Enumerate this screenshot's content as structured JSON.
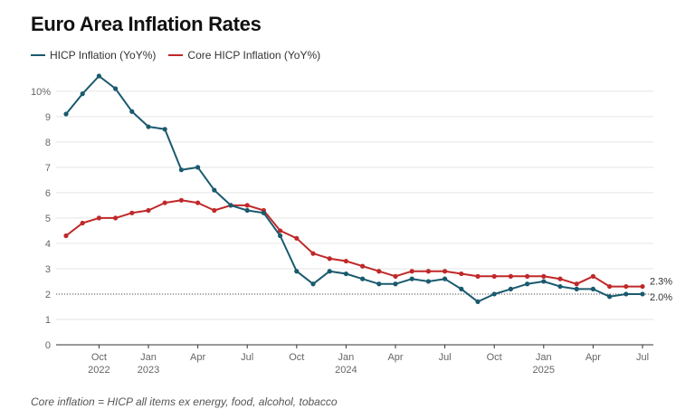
{
  "title": "Euro Area Inflation Rates",
  "footnote": "Core inflation = HICP all items ex energy, food, alcohol, tobacco",
  "colors": {
    "hicp": "#1a5a6e",
    "core": "#c0282a",
    "grid": "#e5e5e5",
    "axis": "#333333"
  },
  "chart_data": {
    "type": "line",
    "title": "Euro Area Inflation Rates",
    "xlabel": "",
    "ylabel": "",
    "ylim": [
      0,
      10.6
    ],
    "yticks": [
      {
        "v": 0,
        "label": "0"
      },
      {
        "v": 1,
        "label": "1"
      },
      {
        "v": 2,
        "label": "2"
      },
      {
        "v": 3,
        "label": "3"
      },
      {
        "v": 4,
        "label": "4"
      },
      {
        "v": 5,
        "label": "5"
      },
      {
        "v": 6,
        "label": "6"
      },
      {
        "v": 7,
        "label": "7"
      },
      {
        "v": 8,
        "label": "8"
      },
      {
        "v": 9,
        "label": "9"
      },
      {
        "v": 10,
        "label": "10%"
      }
    ],
    "reference_line": 2,
    "grid": true,
    "legend": "top-left",
    "x": [
      "2022-08",
      "2022-09",
      "2022-10",
      "2022-11",
      "2022-12",
      "2023-01",
      "2023-02",
      "2023-03",
      "2023-04",
      "2023-05",
      "2023-06",
      "2023-07",
      "2023-08",
      "2023-09",
      "2023-10",
      "2023-11",
      "2023-12",
      "2024-01",
      "2024-02",
      "2024-03",
      "2024-04",
      "2024-05",
      "2024-06",
      "2024-07",
      "2024-08",
      "2024-09",
      "2024-10",
      "2024-11",
      "2024-12",
      "2025-01",
      "2025-02",
      "2025-03",
      "2025-04",
      "2025-05",
      "2025-06",
      "2025-07"
    ],
    "xticks": [
      {
        "month": "2022-10",
        "label": "Oct",
        "year": "2022"
      },
      {
        "month": "2023-01",
        "label": "Jan",
        "year": "2023"
      },
      {
        "month": "2023-04",
        "label": "Apr",
        "year": ""
      },
      {
        "month": "2023-07",
        "label": "Jul",
        "year": ""
      },
      {
        "month": "2023-10",
        "label": "Oct",
        "year": ""
      },
      {
        "month": "2024-01",
        "label": "Jan",
        "year": "2024"
      },
      {
        "month": "2024-04",
        "label": "Apr",
        "year": ""
      },
      {
        "month": "2024-07",
        "label": "Jul",
        "year": ""
      },
      {
        "month": "2024-10",
        "label": "Oct",
        "year": ""
      },
      {
        "month": "2025-01",
        "label": "Jan",
        "year": "2025"
      },
      {
        "month": "2025-04",
        "label": "Apr",
        "year": ""
      },
      {
        "month": "2025-07",
        "label": "Jul",
        "year": ""
      }
    ],
    "series": [
      {
        "name": "HICP Inflation (YoY%)",
        "color": "#1a5a6e",
        "end_label": "2.0%",
        "values": [
          9.1,
          9.9,
          10.6,
          10.1,
          9.2,
          8.6,
          8.5,
          6.9,
          7.0,
          6.1,
          5.5,
          5.3,
          5.2,
          4.3,
          2.9,
          2.4,
          2.9,
          2.8,
          2.6,
          2.4,
          2.4,
          2.6,
          2.5,
          2.6,
          2.2,
          1.7,
          2.0,
          2.2,
          2.4,
          2.5,
          2.3,
          2.2,
          2.2,
          1.9,
          2.0,
          2.0
        ]
      },
      {
        "name": "Core HICP Inflation (YoY%)",
        "color": "#c0282a",
        "end_label": "2.3%",
        "values": [
          4.3,
          4.8,
          5.0,
          5.0,
          5.2,
          5.3,
          5.6,
          5.7,
          5.6,
          5.3,
          5.5,
          5.5,
          5.3,
          4.5,
          4.2,
          3.6,
          3.4,
          3.3,
          3.1,
          2.9,
          2.7,
          2.9,
          2.9,
          2.9,
          2.8,
          2.7,
          2.7,
          2.7,
          2.7,
          2.7,
          2.6,
          2.4,
          2.7,
          2.3,
          2.3,
          2.3
        ]
      }
    ]
  }
}
